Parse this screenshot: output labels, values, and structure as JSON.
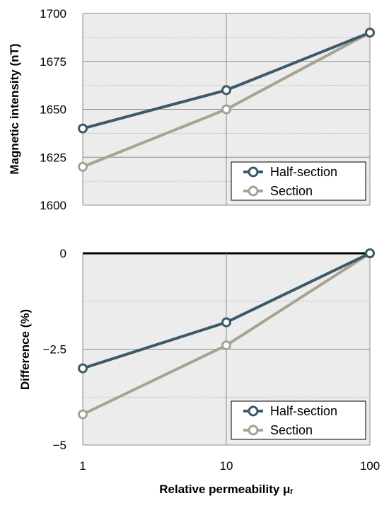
{
  "chart_data": [
    {
      "type": "line",
      "xscale": "log",
      "x": [
        1,
        10,
        100
      ],
      "ylabel": "Magnetic intensity (nT)",
      "ylim": [
        1600,
        1700
      ],
      "yticks": [
        1600,
        1625,
        1650,
        1675,
        1700
      ],
      "ytick_labels": [
        "1600",
        "1625",
        "1650",
        "1675",
        "1700"
      ],
      "grid": true,
      "legend": "bottom-right",
      "series": [
        {
          "name": "Half-section",
          "values": [
            1640,
            1660,
            1690
          ],
          "color": "#3d5a6b"
        },
        {
          "name": "Section",
          "values": [
            1620,
            1650,
            1690
          ],
          "color": "#a8a390"
        }
      ]
    },
    {
      "type": "line",
      "xscale": "log",
      "x": [
        1,
        10,
        100
      ],
      "ylabel": "Difference (%)",
      "xlabel": "Relative permeability μᵣ",
      "xtick_labels": [
        "1",
        "10",
        "100"
      ],
      "ylim": [
        -5,
        0
      ],
      "yticks": [
        -5,
        -2.5,
        0
      ],
      "ytick_labels": [
        "−5",
        "−2.5",
        "0"
      ],
      "grid": true,
      "legend": "bottom-right",
      "series": [
        {
          "name": "Half-section",
          "values": [
            -3.0,
            -1.8,
            0
          ],
          "color": "#3d5a6b"
        },
        {
          "name": "Section",
          "values": [
            -4.2,
            -2.4,
            0
          ],
          "color": "#a8a390"
        }
      ]
    }
  ]
}
